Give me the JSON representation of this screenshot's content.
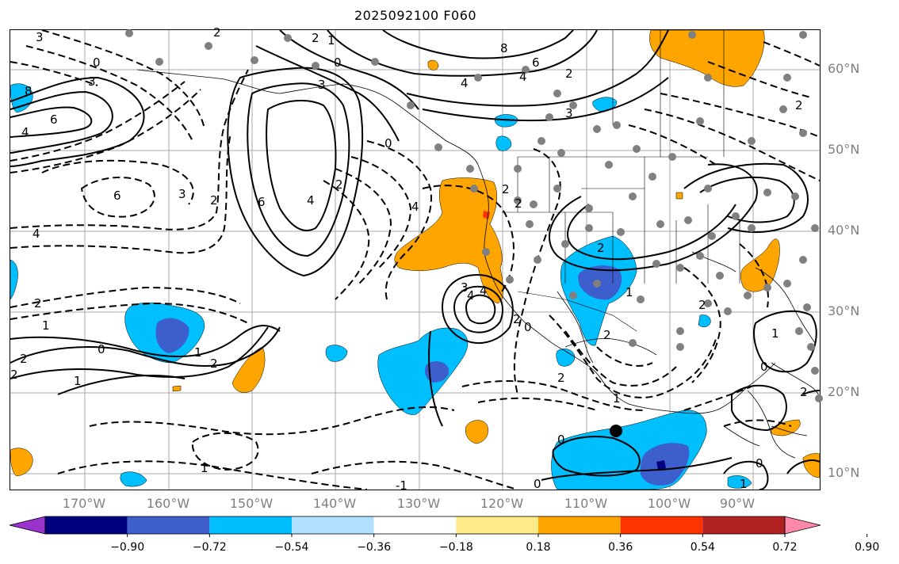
{
  "title": "2025092100 F060",
  "lon_labels": [
    "170°W",
    "160°W",
    "150°W",
    "140°W",
    "130°W",
    "120°W",
    "110°W",
    "100°W",
    "90°W"
  ],
  "lon_values": [
    -170,
    -160,
    -150,
    -140,
    -130,
    -120,
    -110,
    -100,
    -90
  ],
  "lat_labels": [
    "60°N",
    "50°N",
    "40°N",
    "30°N",
    "20°N",
    "10°N"
  ],
  "lat_values": [
    60,
    50,
    40,
    30,
    20,
    10
  ],
  "colorbar": {
    "ticks": [
      "−0.90",
      "−0.72",
      "−0.54",
      "−0.36",
      "−0.18",
      "0.18",
      "0.36",
      "0.54",
      "0.72",
      "0.90"
    ],
    "tick_values": [
      -0.9,
      -0.72,
      -0.54,
      -0.36,
      -0.18,
      0.18,
      0.36,
      0.54,
      0.72,
      0.9
    ],
    "colors": [
      "#9933cc",
      "#000080",
      "#3c5fcd",
      "#00bfff",
      "#b0e2ff",
      "#ffffff",
      "#ffea8a",
      "#ffa500",
      "#ff3300",
      "#b22222",
      "#ff88aa"
    ]
  },
  "contour_labels": [
    "3",
    "2",
    "2",
    "1",
    "0",
    "0",
    "8",
    "6",
    "4",
    "3",
    "3",
    "4",
    "2",
    "8",
    "4",
    "6",
    "4",
    "2",
    "3",
    "2",
    "6",
    "4",
    "6",
    "2",
    "4",
    "2",
    "0",
    "4",
    "2",
    "1",
    "2",
    "2",
    "1",
    "2",
    "0",
    "1",
    "4",
    "0",
    "2",
    "3",
    "3",
    "2",
    "1",
    "2",
    "2",
    "2",
    "1",
    "0",
    "0",
    "1",
    "1",
    "0",
    "-1",
    "2",
    "0",
    "1",
    "2"
  ]
}
